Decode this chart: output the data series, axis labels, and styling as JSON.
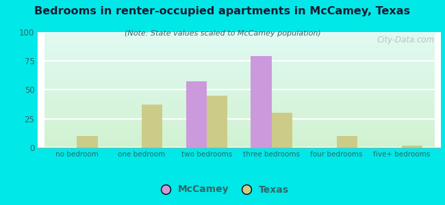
{
  "title": "Bedrooms in renter-occupied apartments in McCamey, Texas",
  "subtitle": "(Note: State values scaled to McCamey population)",
  "categories": [
    "no bedroom",
    "one bedroom",
    "two bedrooms",
    "three bedrooms",
    "four bedrooms",
    "five+ bedrooms"
  ],
  "mccamey_values": [
    0,
    0,
    57,
    79,
    0,
    0
  ],
  "texas_values": [
    10,
    37,
    45,
    30,
    10,
    2
  ],
  "mccamey_color": "#cc99dd",
  "texas_color": "#cccc88",
  "background_outer": "#00e8e8",
  "ylim": [
    0,
    100
  ],
  "yticks": [
    0,
    25,
    50,
    75,
    100
  ],
  "bar_width": 0.32,
  "legend_mccamey": "McCamey",
  "legend_texas": "Texas",
  "watermark": "City-Data.com",
  "title_color": "#1a1a2e",
  "subtitle_color": "#336666",
  "tick_label_color": "#336666"
}
